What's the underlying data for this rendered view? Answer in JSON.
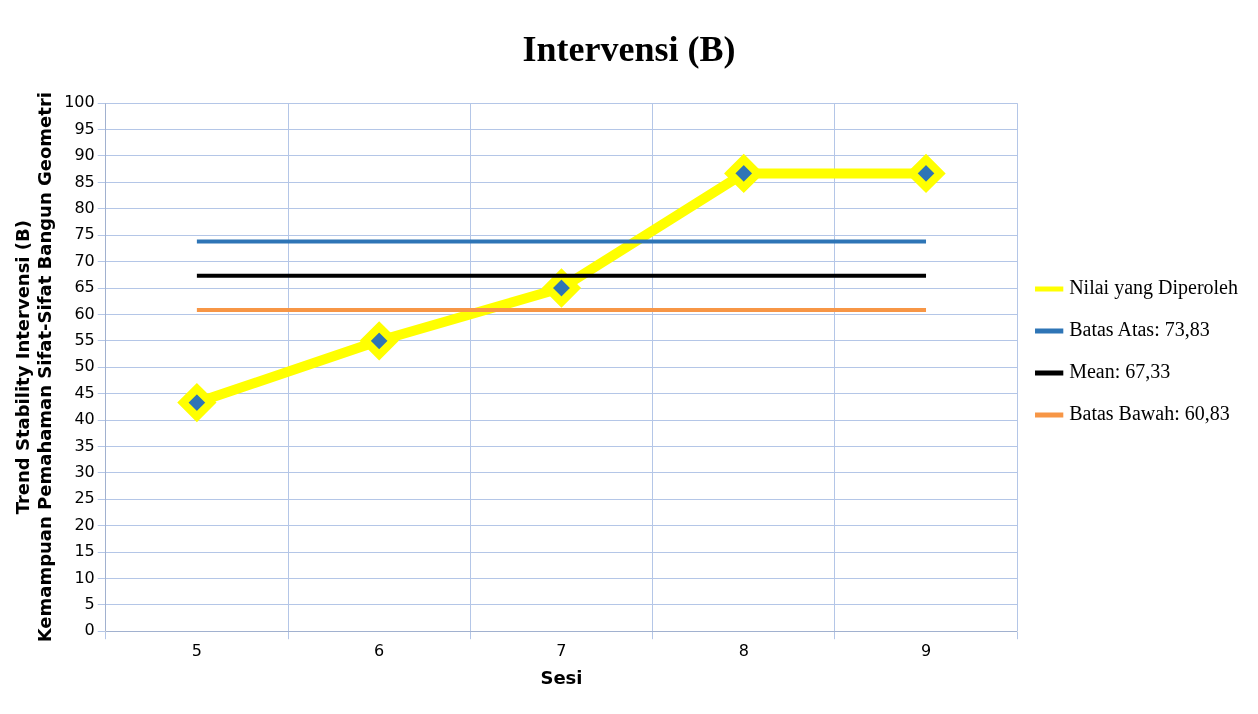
{
  "chart_data": {
    "type": "line",
    "title": "Intervensi (B)",
    "xlabel": "Sesi",
    "ylabel": "Trend Stability Intervensi (B)\nKemampuan Pemahaman Sifat-Sifat Bangun Geometri",
    "categories": [
      "5",
      "6",
      "7",
      "8",
      "9"
    ],
    "series": [
      {
        "name": "Nilai yang Diperoleh",
        "color": "#ffff00",
        "marker": "diamond",
        "values": [
          43.3,
          55,
          65,
          86.7,
          86.7
        ]
      },
      {
        "name": "Batas Atas: 73,83",
        "color": "#2e75b6",
        "marker": "none",
        "values": [
          73.83,
          73.83,
          73.83,
          73.83,
          73.83
        ]
      },
      {
        "name": "Mean: 67,33",
        "color": "#000000",
        "marker": "none",
        "values": [
          67.33,
          67.33,
          67.33,
          67.33,
          67.33
        ]
      },
      {
        "name": "Batas Bawah: 60,83",
        "color": "#f79646",
        "marker": "none",
        "values": [
          60.83,
          60.83,
          60.83,
          60.83,
          60.83
        ]
      }
    ],
    "ylim": [
      0,
      100
    ],
    "yticks": [
      0,
      5,
      10,
      15,
      20,
      25,
      30,
      35,
      40,
      45,
      50,
      55,
      60,
      65,
      70,
      75,
      80,
      85,
      90,
      95,
      100
    ],
    "grid": true,
    "legend": "right"
  }
}
